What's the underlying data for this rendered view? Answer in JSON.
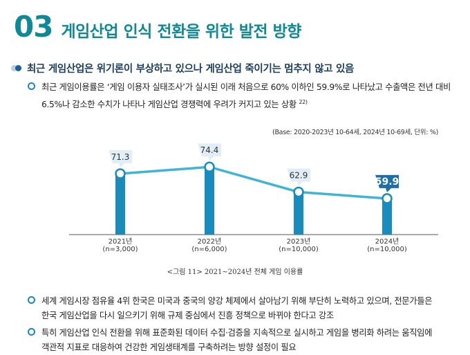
{
  "header": {
    "number": "03",
    "title": "게임산업 인식 전환을 위한 발전 방향"
  },
  "section": {
    "title": "최근 게임산업은 위기론이 부상하고 있으나 게임산업 죽이기는 멈추지 않고 있음"
  },
  "bullets": {
    "b1_line1": "최근 게임이용률은 ‘게임 이용자 실태조사’가 실시된 이래 처음으로 60% 이하인 59.9%로 나타났고 수출액은 전년 대비",
    "b1_line2": "6.5%나 감소한 수치가 나타나 게임산업 경쟁력에 우려가 커지고 있는 상황",
    "b1_ref": "22)",
    "b2_line1": "세계 게임시장 점유율 4위 한국은 미국과 중국의 양강 체제에서 살아남기 위해 부단히 노력하고 있으며, 전문가들은",
    "b2_line2": "한국 게임산업을 다시 일으키기 위해 규제 중심에서 진흥 정책으로 바뀌야 한다고 강조",
    "b3_line1": "특히 게임산업 인식 전환을 위해 표준화된 데이터 수집·검증을 지속적으로 실시하고 게임을 병리화 하려는 움직임에",
    "b3_line2": "객관적 지표로 대응하여 건강한 게임생태계를 구축하려는 방향 설정이 필요"
  },
  "chart_note": "(Base: 2020-2023년 10-64세, 2024년 10-69세, 단위: %)",
  "figure_caption": "<그림 11> 2021~2024년 전체 게임 이용률",
  "colors": {
    "accent": "#0e8a96",
    "bar": "#1a8bbd",
    "line": "#3fb5d6",
    "label_bg": "#e1eef7",
    "label_highlight": "#1d6fa8",
    "section_text": "#1a3d60"
  },
  "chart_data": {
    "type": "bar",
    "categories": [
      "2021년",
      "2022년",
      "2023년",
      "2024년"
    ],
    "category_sublabels": [
      "(n=3,000)",
      "(n=6,000)",
      "(n=10,000)",
      "(n=10,000)"
    ],
    "values": [
      71.3,
      74.4,
      62.9,
      59.9
    ],
    "value_labels": [
      "71.3",
      "74.4",
      "62.9",
      "59.9"
    ],
    "highlight_index": 3,
    "line_overlay": true,
    "ylim": [
      0,
      80
    ],
    "grid": false,
    "title": "",
    "xlabel": "",
    "ylabel": ""
  }
}
